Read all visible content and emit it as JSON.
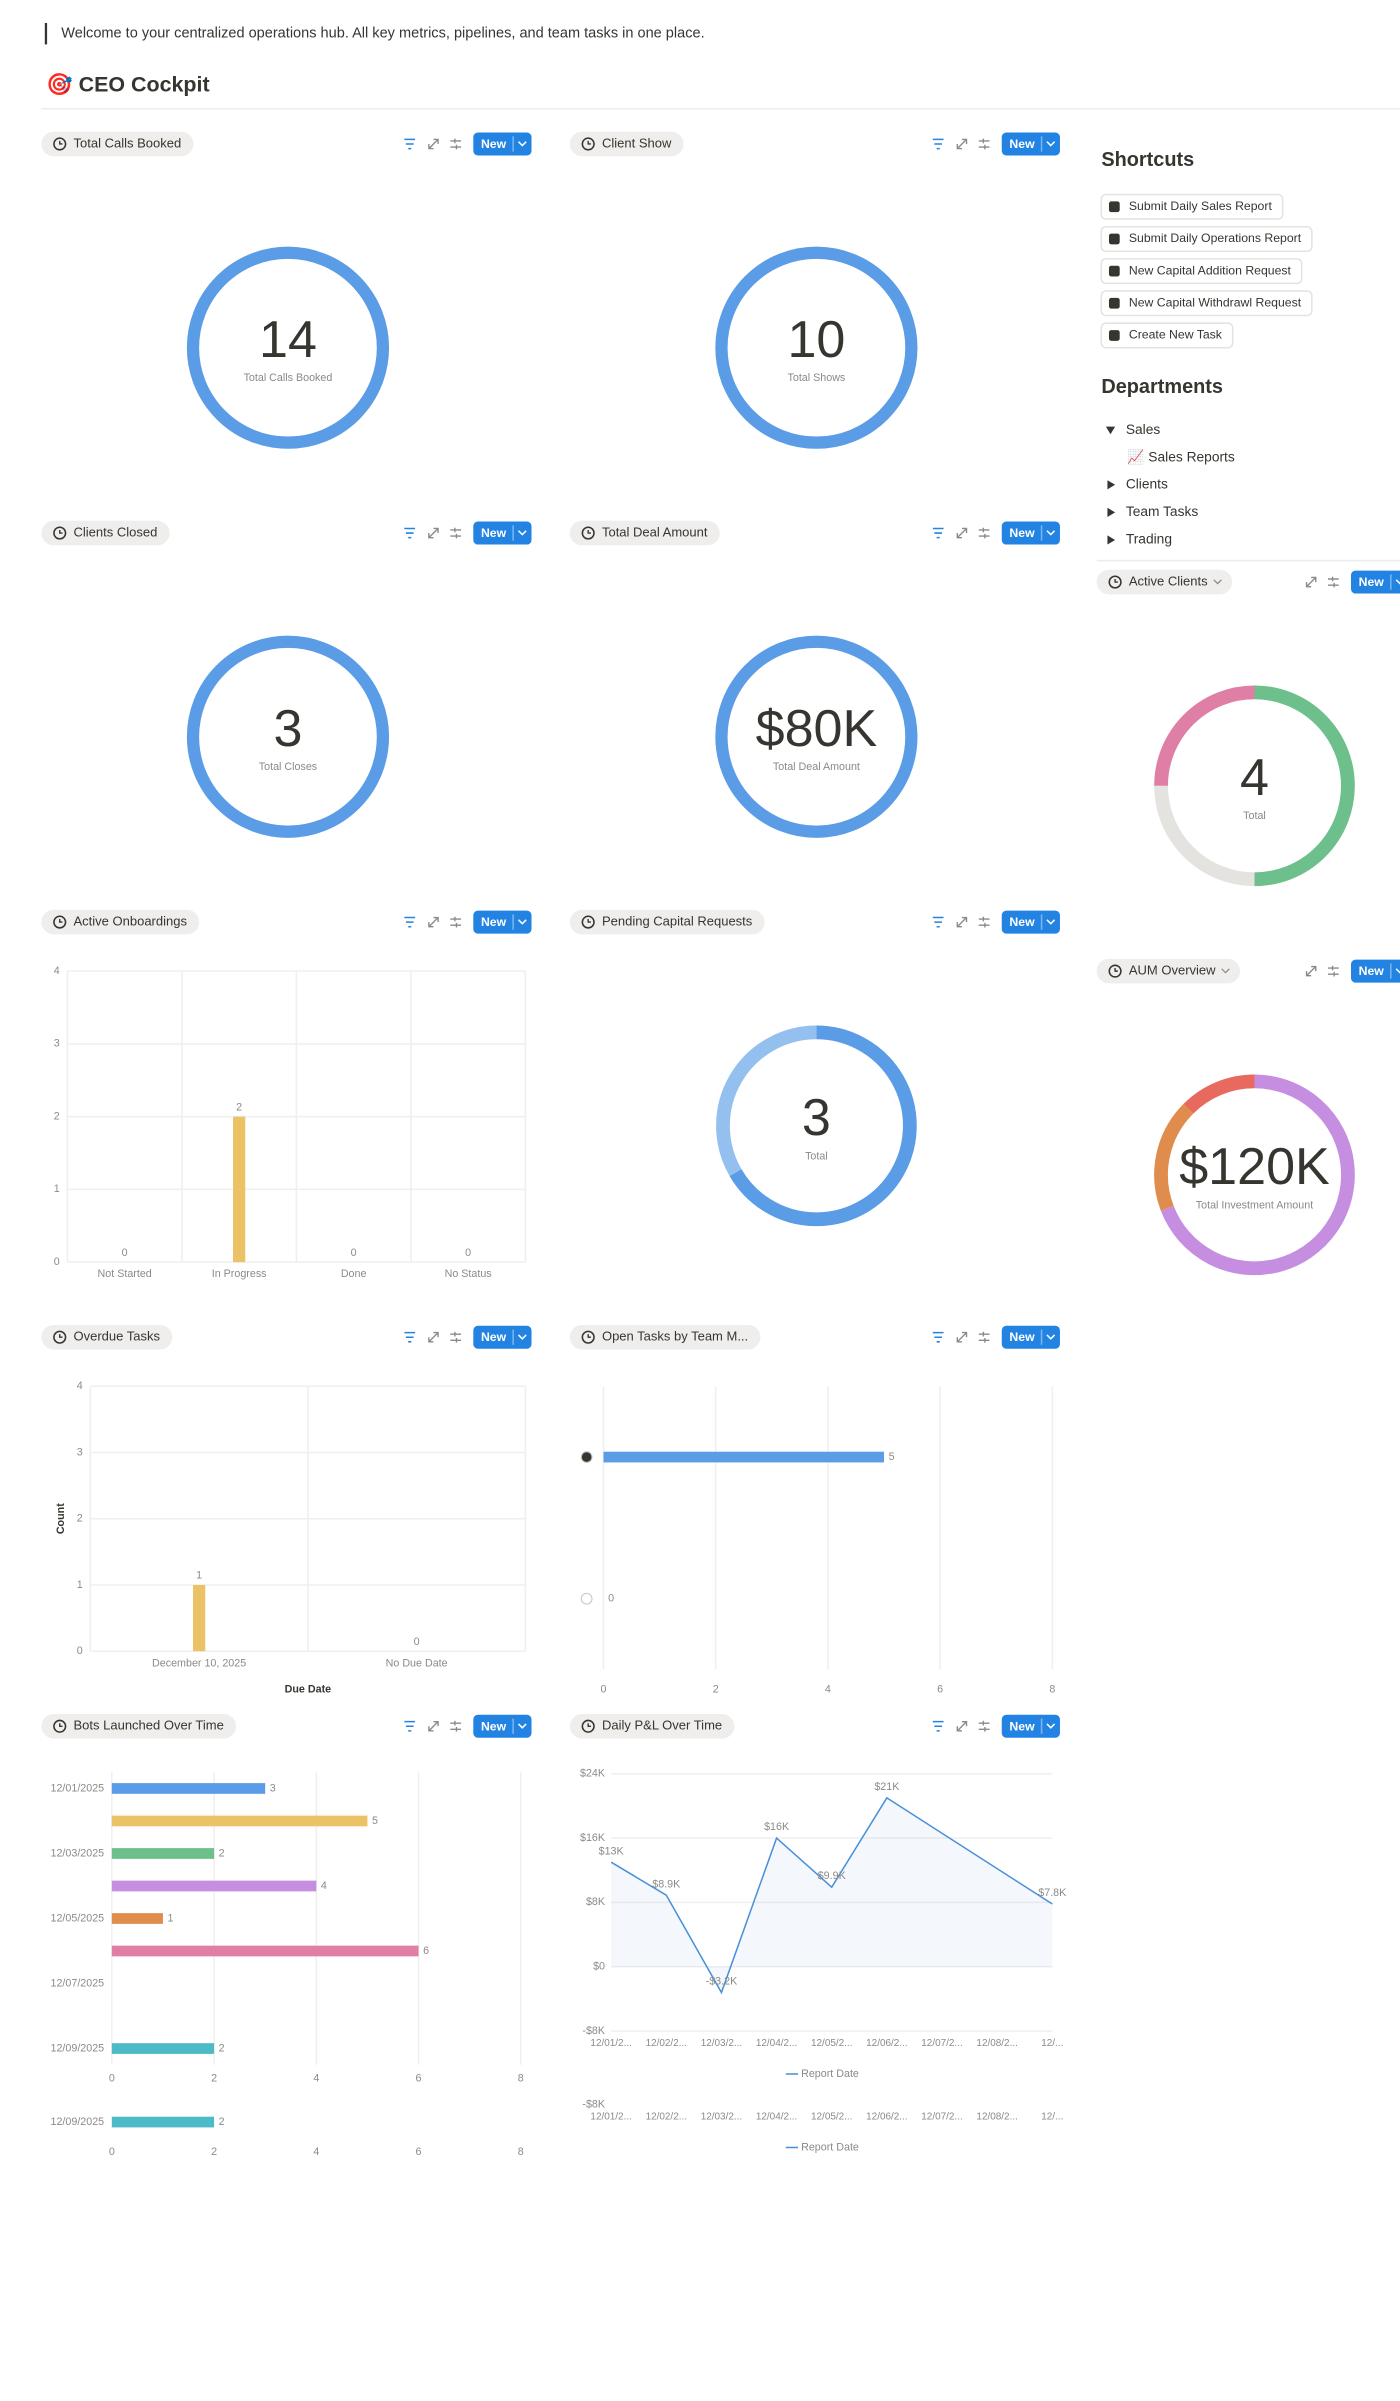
{
  "intro": "Welcome to your centralized operations hub. All key metrics, pipelines, and team tasks in one place.",
  "heading": "🎯 CEO Cockpit",
  "new_button": "New",
  "shortcuts": {
    "title": "Shortcuts",
    "items": [
      "Submit Daily Sales Report",
      "Submit Daily Operations Report",
      "New Capital Addition Request",
      "New Capital Withdrawl Request",
      "Create New Task"
    ]
  },
  "departments": {
    "title": "Departments",
    "items": [
      {
        "label": "Sales",
        "children": [
          "📈 Sales Reports"
        ]
      },
      {
        "label": "Clients"
      },
      {
        "label": "Team Tasks"
      },
      {
        "label": "Trading"
      }
    ]
  },
  "chart_data": [
    {
      "type": "number",
      "title": "Total Calls Booked",
      "value": 14,
      "label": "Total Calls Booked",
      "color": "#5b9ce6"
    },
    {
      "type": "number",
      "title": "Client Show",
      "value": 10,
      "label": "Total Shows",
      "color": "#5b9ce6"
    },
    {
      "type": "number",
      "title": "Clients Closed",
      "value": 3,
      "label": "Total Closes",
      "color": "#5b9ce6"
    },
    {
      "type": "number",
      "title": "Total Deal Amount",
      "value": 80000,
      "value_label": "$80K",
      "label": "Total Deal Amount",
      "color": "#5b9ce6"
    },
    {
      "type": "bar",
      "title": "Active Onboardings",
      "categories": [
        "Not Started",
        "In Progress",
        "Done",
        "No Status"
      ],
      "values": [
        0,
        2,
        0,
        0
      ],
      "color": "#ecc266",
      "ylim": [
        0,
        4
      ],
      "yticks": [
        0,
        1,
        2,
        3,
        4
      ],
      "grid": true
    },
    {
      "type": "donut",
      "title": "Pending Capital Requests",
      "values": [
        2,
        1
      ],
      "colors": [
        "#5b9ce6",
        "#94c0ef"
      ],
      "total": 3,
      "label": "Total"
    },
    {
      "type": "bar",
      "title": "Overdue Tasks",
      "categories": [
        "December 10, 2025",
        "No Due Date"
      ],
      "values": [
        1,
        0
      ],
      "color": "#ecc266",
      "ylim": [
        0,
        4
      ],
      "yticks": [
        0,
        1,
        2,
        3,
        4
      ],
      "y_label": "Count",
      "x_label": "Due Date",
      "grid": true
    },
    {
      "type": "hbar",
      "title": "Open Tasks by Team M...",
      "categories": [
        null,
        null
      ],
      "values": [
        5,
        0
      ],
      "color": "#5b9ce6",
      "xlim": [
        0,
        8
      ],
      "xticks": [
        0,
        2,
        4,
        6,
        8
      ],
      "grid": true
    },
    {
      "type": "hbar",
      "title": "Bots Launched Over Time",
      "categories": [
        "12/01/2025",
        null,
        "12/03/2025",
        null,
        "12/05/2025",
        null,
        "12/07/2025",
        null,
        "12/09/2025"
      ],
      "values": [
        3,
        5,
        2,
        4,
        1,
        6,
        null,
        null,
        2
      ],
      "colors": [
        "#5b9ce6",
        "#ecc266",
        "#6dbf8b",
        "#c58ee0",
        "#e08c4d",
        "#e07fa5",
        null,
        null,
        "#4dbbc7"
      ],
      "xlim": [
        0,
        8
      ],
      "xticks": [
        0,
        2,
        4,
        6,
        8
      ],
      "grid": true
    },
    {
      "type": "line",
      "title": "Daily P&L Over Time",
      "x": [
        0,
        1,
        2,
        3,
        4,
        5,
        8
      ],
      "series": [
        {
          "name": "Report Date",
          "color": "#4a90d9",
          "values": [
            13000,
            8900,
            -3200,
            16000,
            9900,
            21000,
            7800
          ],
          "value_labels": [
            "$13K",
            "$8.9K",
            "-$3.2K",
            "$16K",
            "$9.9K",
            "$21K",
            "$7.8K"
          ]
        }
      ],
      "xlim": [
        0,
        8
      ],
      "xticks": [
        {
          "value": 0,
          "label": "12/01/2..."
        },
        {
          "value": 1,
          "label": "12/02/2..."
        },
        {
          "value": 2,
          "label": "12/03/2..."
        },
        {
          "value": 3,
          "label": "12/04/2..."
        },
        {
          "value": 4,
          "label": "12/05/2..."
        },
        {
          "value": 5,
          "label": "12/06/2..."
        },
        {
          "value": 6,
          "label": "12/07/2..."
        },
        {
          "value": 7,
          "label": "12/08/2..."
        },
        {
          "value": 8,
          "label": "12/..."
        }
      ],
      "ylim": [
        -8000,
        24000
      ],
      "yticks": [
        {
          "value": -8000,
          "label": "-$8K"
        },
        {
          "value": 0,
          "label": "$0"
        },
        {
          "value": 8000,
          "label": "$8K"
        },
        {
          "value": 16000,
          "label": "$16K"
        },
        {
          "value": 24000,
          "label": "$24K"
        }
      ],
      "grid": true
    },
    {
      "type": "donut",
      "title": "Active Clients",
      "values": [
        2,
        1,
        1
      ],
      "colors": [
        "#6dbf8b",
        "#e4e3e0",
        "#e07fa5"
      ],
      "total": 4,
      "label": "Total"
    },
    {
      "type": "donut",
      "title": "AUM Overview",
      "values": [
        83000,
        22000,
        15000
      ],
      "colors": [
        "#c58ee0",
        "#e08c4d",
        "#e86a5f"
      ],
      "total": 120000,
      "total_label": "$120K",
      "label": "Total Investment Amount"
    }
  ]
}
